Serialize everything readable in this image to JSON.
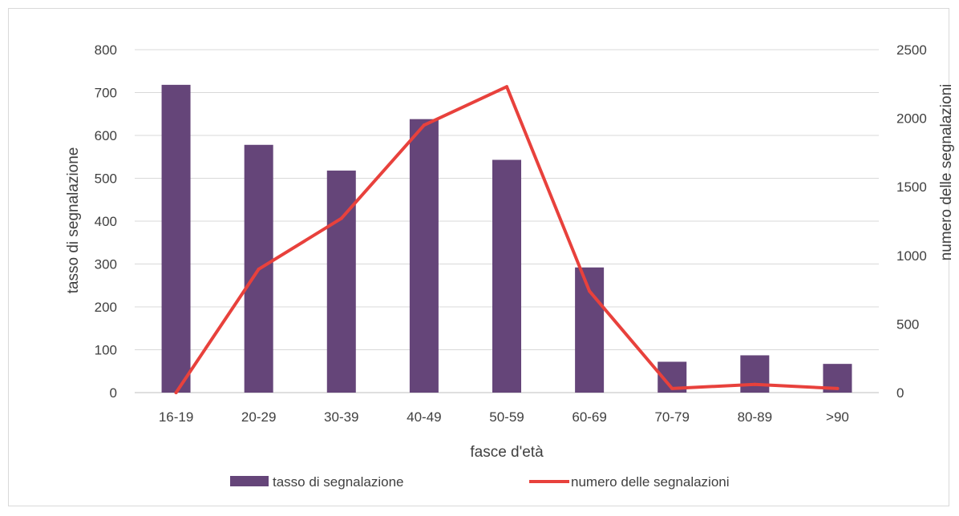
{
  "chart_data": {
    "type": "bar+line",
    "title": "",
    "xlabel": "fasce d'età",
    "ylabel": "tasso di segnalazione",
    "y2label": "numero delle segnalazioni",
    "categories": [
      "16-19",
      "20-29",
      "30-39",
      "40-49",
      "50-59",
      "60-69",
      "70-79",
      "80-89",
      ">90"
    ],
    "ylim": [
      0,
      800
    ],
    "yticks": [
      "0",
      "100",
      "200",
      "300",
      "400",
      "500",
      "600",
      "700",
      "800"
    ],
    "y2lim": [
      0,
      2500
    ],
    "y2ticks": [
      "0",
      "500",
      "1000",
      "1500",
      "2000",
      "2500"
    ],
    "grid": true,
    "legend_position": "bottom",
    "series": [
      {
        "name": "tasso di segnalazione",
        "type": "bar",
        "axis": "left",
        "color": "#654579",
        "values": [
          718,
          578,
          518,
          638,
          543,
          292,
          72,
          87,
          67
        ]
      },
      {
        "name": "numero delle segnalazioni",
        "type": "line",
        "axis": "right",
        "color": "#e8413c",
        "values": [
          0,
          900,
          1270,
          1950,
          2230,
          740,
          30,
          60,
          30
        ]
      }
    ]
  }
}
